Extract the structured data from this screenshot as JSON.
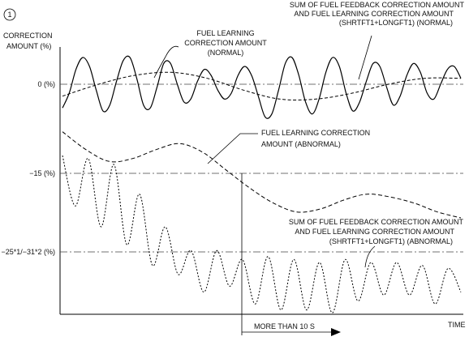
{
  "figure_number": "1",
  "chart_data": {
    "type": "line",
    "ylabel_lines": [
      "CORRECTION",
      "AMOUNT (%)"
    ],
    "xlabel": "TIME",
    "yticks": [
      {
        "label": "0 (%)",
        "value": 0
      },
      {
        "label": "−15 (%)",
        "value": -15
      },
      {
        "label": "−25*1/−31*2 (%)",
        "value": -30
      }
    ],
    "grid": "dash-dot reference lines at 0, −15 and −25/−31 %",
    "legend": "callout labels",
    "time_marker": {
      "label": "MORE THAN 10 S",
      "x_fraction": 0.44
    },
    "series": [
      {
        "name_lines": [
          "SUM OF FUEL FEEDBACK CORRECTION AMOUNT",
          "AND FUEL LEARNING CORRECTION AMOUNT",
          "(SHRTFT1+LONGFT1) (NORMAL)"
        ],
        "style": "solid",
        "shape": "oscillation about 0 %",
        "values": [
          -4.0,
          -1.5,
          2.5,
          4.5,
          3.0,
          -1.0,
          -4.5,
          -3.5,
          0.5,
          4.0,
          4.5,
          1.0,
          -3.5,
          -4.0,
          -0.5,
          3.5,
          3.5,
          0.0,
          -3.0,
          -2.5,
          0.5,
          2.5,
          1.5,
          -1.0,
          -2.5,
          -1.5,
          1.5,
          3.0,
          1.5,
          -2.0,
          -5.5,
          -5.0,
          -1.0,
          3.5,
          4.5,
          1.5,
          -3.0,
          -5.0,
          -2.5,
          2.0,
          4.5,
          3.0,
          -1.5,
          -4.5,
          -3.0,
          0.5,
          3.5,
          3.0,
          -0.5,
          -3.5,
          -2.0,
          1.5,
          3.5,
          2.0,
          -1.5,
          -2.5,
          0.0,
          2.5,
          3.0,
          1.0
        ]
      },
      {
        "name_lines": [
          "FUEL LEARNING",
          "CORRECTION AMOUNT",
          "(NORMAL)"
        ],
        "style": "dashed",
        "shape": "slow wave about 0 %",
        "values": [
          -2.0,
          0.0,
          1.5,
          2.0,
          1.0,
          -1.0,
          -2.5,
          -2.5,
          -1.5,
          0.0,
          1.0,
          1.0
        ]
      },
      {
        "name_lines": [
          "FUEL LEARNING CORRECTION",
          "AMOUNT (ABNORMAL)"
        ],
        "style": "dashed",
        "shape": "falls from about −8 % to about −21 %",
        "values": [
          -8.0,
          -11.0,
          -13.0,
          -12.5,
          -11.0,
          -10.0,
          -11.5,
          -14.5,
          -17.5,
          -20.0,
          -21.5,
          -21.0,
          -19.5,
          -18.5,
          -19.0,
          -20.0,
          -21.5,
          -22.5
        ]
      },
      {
        "name_lines": [
          "SUM OF FUEL FEEDBACK CORRECTION AMOUNT",
          "AND FUEL LEARNING CORRECTION AMOUNT",
          "(SHRTFT1+LONGFT1) (ABNORMAL)"
        ],
        "style": "dotted",
        "shape": "oscillation drifting from about −12 % down to about −31 %",
        "values": [
          -12.0,
          -20.5,
          -12.5,
          -24.0,
          -13.5,
          -27.0,
          -18.5,
          -30.5,
          -24.0,
          -32.0,
          -28.0,
          -35.0,
          -28.0,
          -34.0,
          -29.5,
          -37.0,
          -29.0,
          -38.0,
          -29.5,
          -38.0,
          -30.0,
          -38.5,
          -29.5,
          -36.5,
          -30.0,
          -35.5,
          -30.0,
          -35.5,
          -30.5,
          -37.0,
          -31.0,
          -35.0
        ]
      }
    ]
  }
}
